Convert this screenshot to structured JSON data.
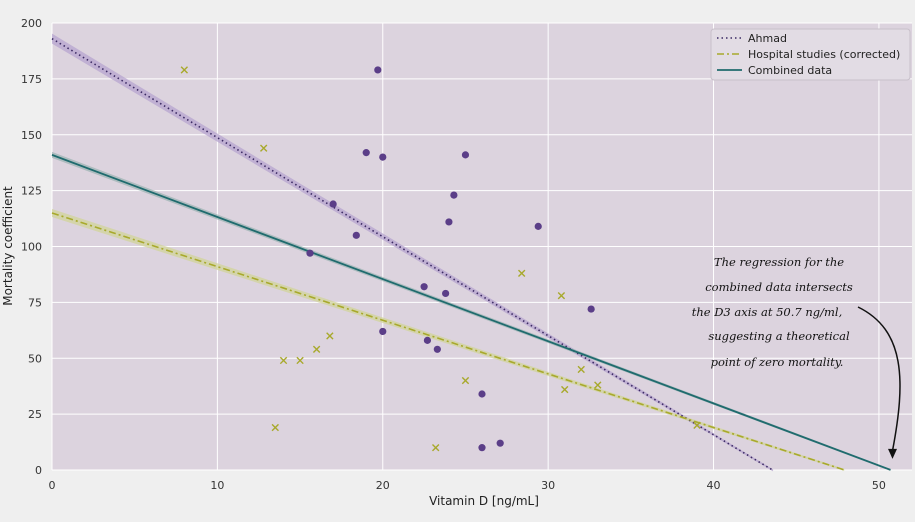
{
  "chart_data": {
    "type": "scatter",
    "xlabel": "Vitamin D [ng/mL]",
    "ylabel": "Mortality coefficient",
    "xlim": [
      0,
      52
    ],
    "ylim": [
      0,
      200
    ],
    "xticks": [
      0,
      10,
      20,
      30,
      40,
      50
    ],
    "yticks": [
      0,
      25,
      50,
      75,
      100,
      125,
      150,
      175,
      200
    ],
    "grid": true,
    "legend_position": "top-right",
    "colors": {
      "plot_bg": "#dcd3de",
      "grid": "#ffffff",
      "ahmad": "#3b2a63",
      "ahmad_band": "#b7a4cf",
      "hospital": "#a8a92c",
      "hospital_band": "#d1d49a",
      "combined": "#1f6b6e",
      "combined_band": "#9fb4b4",
      "ahmad_points": "#5b3e88",
      "hospital_points": "#a8a92c"
    },
    "series": [
      {
        "name": "Ahmad",
        "kind": "points",
        "marker": "circle",
        "x": [
          19.7,
          19.0,
          20.0,
          25.0,
          17.0,
          24.3,
          18.4,
          24.0,
          29.4,
          15.6,
          22.5,
          23.8,
          32.6,
          20.0,
          22.7,
          23.3,
          26.0,
          27.1,
          26.0
        ],
        "y": [
          179,
          142,
          140,
          141,
          119,
          123,
          105,
          111,
          109,
          97,
          82,
          79,
          72,
          62,
          58,
          54,
          34,
          12,
          10
        ]
      },
      {
        "name": "Hospital studies (corrected)",
        "kind": "points",
        "marker": "x",
        "x": [
          8.0,
          12.8,
          28.4,
          30.8,
          16.8,
          16.0,
          14.0,
          15.0,
          25.0,
          32.0,
          31.0,
          33.0,
          13.5,
          23.2,
          39.0
        ],
        "y": [
          179,
          144,
          88,
          78,
          60,
          54,
          49,
          49,
          40,
          45,
          36,
          38,
          19,
          10,
          20
        ]
      },
      {
        "name": "Ahmad",
        "kind": "regression",
        "style": "dotted",
        "intercept": 193,
        "slope": -4.43,
        "x_range": [
          0,
          43.6
        ]
      },
      {
        "name": "Hospital studies (corrected)",
        "kind": "regression",
        "style": "dashdot",
        "intercept": 115,
        "slope": -2.4,
        "x_range": [
          0,
          47.9
        ]
      },
      {
        "name": "Combined data",
        "kind": "regression",
        "style": "solid",
        "intercept": 141,
        "slope": -2.78,
        "x_range": [
          0,
          50.7
        ]
      }
    ],
    "legend": [
      {
        "label": "Ahmad",
        "style": "dotted"
      },
      {
        "label": "Hospital studies (corrected)",
        "style": "dashdot"
      },
      {
        "label": "Combined data",
        "style": "solid"
      }
    ],
    "annotation": {
      "lines": [
        "The regression for the",
        "combined data intersects",
        "the D3 axis at 50.7 ng/ml,",
        "suggesting a theoretical",
        "point of zero mortality."
      ],
      "arrow_target": [
        50.7,
        5
      ]
    }
  }
}
